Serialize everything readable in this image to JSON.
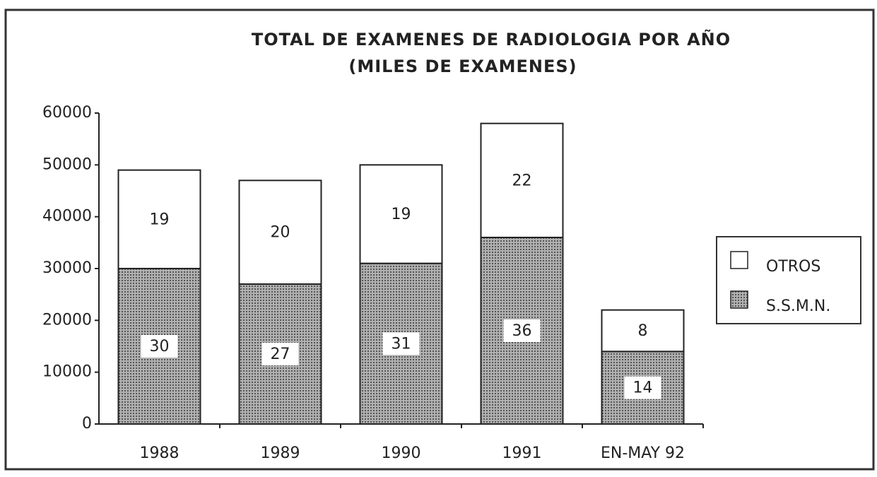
{
  "chart_data": {
    "type": "stacked_bar",
    "title": "TOTAL DE EXAMENES DE RADIOLOGIA POR AÑO",
    "subtitle": "(MILES DE EXAMENES)",
    "categories": [
      "1988",
      "1989",
      "1990",
      "1991",
      "EN-MAY 92"
    ],
    "series": [
      {
        "name": "S.S.M.N.",
        "color": "#8a8a8a",
        "values": [
          30000,
          27000,
          31000,
          36000,
          14000
        ],
        "value_labels": [
          "30",
          "27",
          "31",
          "36",
          "14"
        ]
      },
      {
        "name": "OTROS",
        "color": "#ffffff",
        "values": [
          19000,
          20000,
          19000,
          22000,
          8000
        ],
        "value_labels": [
          "19",
          "20",
          "19",
          "22",
          "8"
        ]
      }
    ],
    "ylim": [
      0,
      60000
    ],
    "yticks": [
      0,
      10000,
      20000,
      30000,
      40000,
      50000,
      60000
    ],
    "grid": false,
    "legend": "right"
  }
}
